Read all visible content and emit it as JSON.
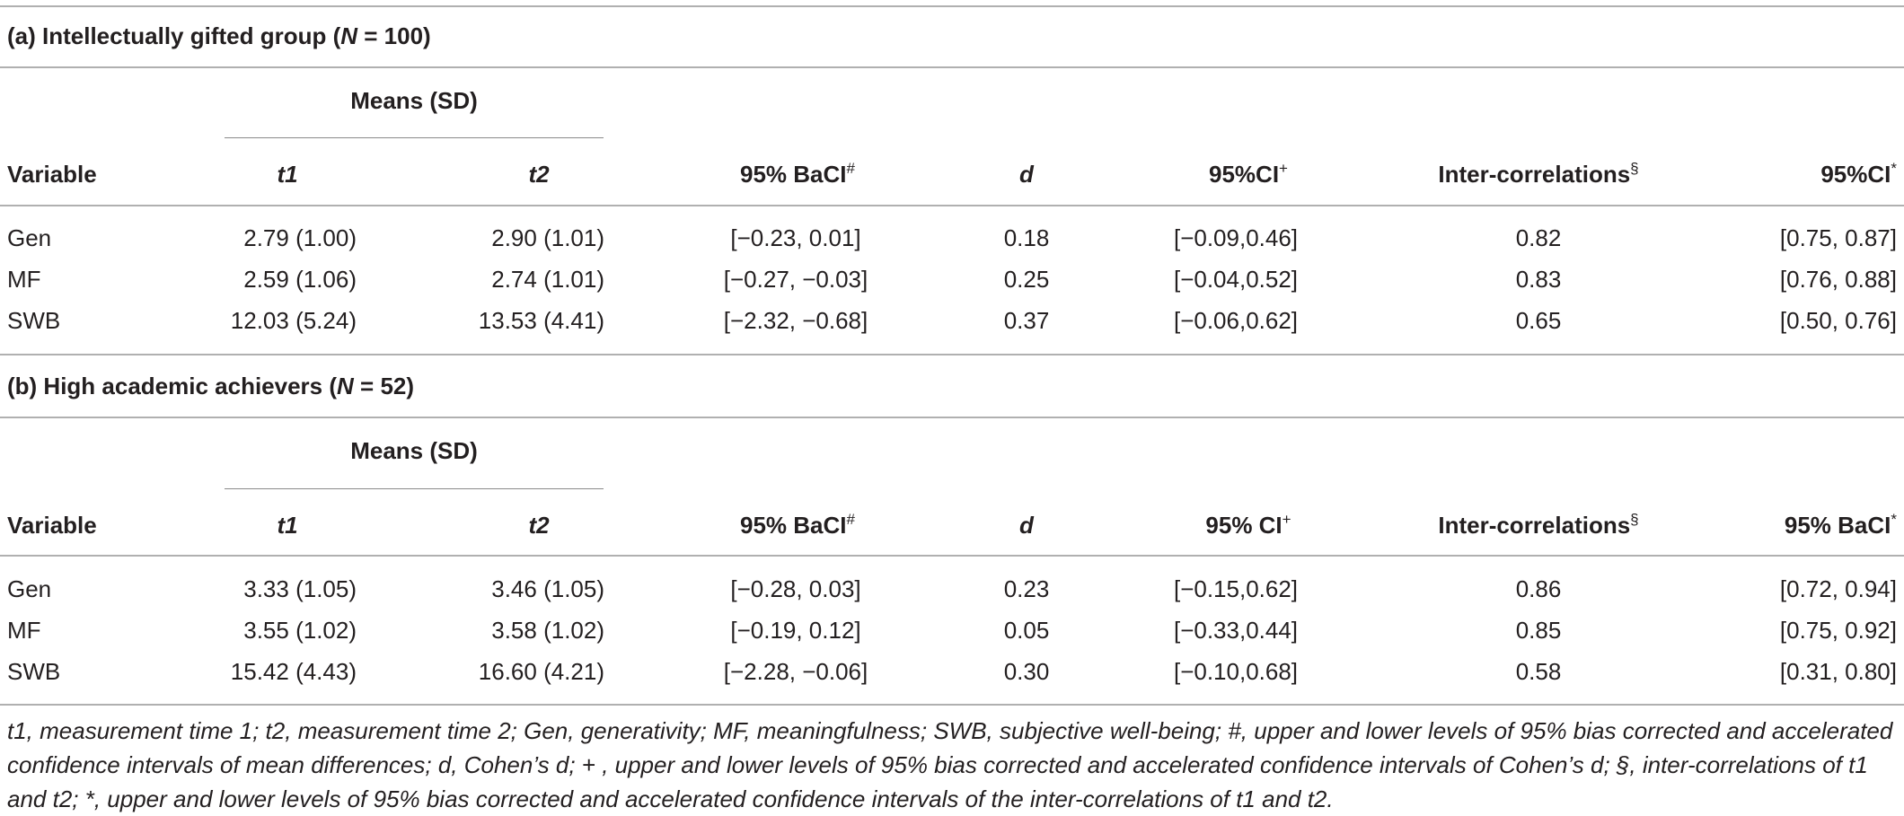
{
  "sections": [
    {
      "title_prefix": "(a) Intellectually gifted group (",
      "title_n": "N",
      "title_suffix": " = 100)",
      "means_header": "Means (SD)",
      "headers": {
        "variable": "Variable",
        "t1": "t1",
        "t2": "t2",
        "baci": "95% BaCI",
        "baci_mark": "#",
        "d": "d",
        "ci_d": "95%CI",
        "ci_d_mark": "+",
        "intercorr": "Inter-correlations",
        "intercorr_mark": "§",
        "ci_r": "95%CI",
        "ci_r_mark": "*"
      },
      "rows": [
        {
          "variable": "Gen",
          "t1": "2.79 (1.00)",
          "t2": "2.90 (1.01)",
          "baci": "[−0.23, 0.01]",
          "d": "0.18",
          "ci_d": "[−0.09,0.46]",
          "intercorr": "0.82",
          "ci_r": "[0.75, 0.87]"
        },
        {
          "variable": "MF",
          "t1": "2.59 (1.06)",
          "t2": "2.74 (1.01)",
          "baci": "[−0.27, −0.03]",
          "d": "0.25",
          "ci_d": "[−0.04,0.52]",
          "intercorr": "0.83",
          "ci_r": "[0.76, 0.88]"
        },
        {
          "variable": "SWB",
          "t1": "12.03 (5.24)",
          "t2": "13.53 (4.41)",
          "baci": "[−2.32, −0.68]",
          "d": "0.37",
          "ci_d": "[−0.06,0.62]",
          "intercorr": "0.65",
          "ci_r": "[0.50, 0.76]"
        }
      ]
    },
    {
      "title_prefix": "(b) High academic achievers (",
      "title_n": "N",
      "title_suffix": " = 52)",
      "means_header": "Means (SD)",
      "headers": {
        "variable": "Variable",
        "t1": "t1",
        "t2": "t2",
        "baci": "95% BaCI",
        "baci_mark": "#",
        "d": "d",
        "ci_d": "95% CI",
        "ci_d_mark": "+",
        "intercorr": "Inter-correlations",
        "intercorr_mark": "§",
        "ci_r": "95% BaCI",
        "ci_r_mark": "*"
      },
      "rows": [
        {
          "variable": "Gen",
          "t1": "3.33 (1.05)",
          "t2": "3.46 (1.05)",
          "baci": "[−0.28, 0.03]",
          "d": "0.23",
          "ci_d": "[−0.15,0.62]",
          "intercorr": "0.86",
          "ci_r": "[0.72, 0.94]"
        },
        {
          "variable": "MF",
          "t1": "3.55 (1.02)",
          "t2": "3.58 (1.02)",
          "baci": "[−0.19, 0.12]",
          "d": "0.05",
          "ci_d": "[−0.33,0.44]",
          "intercorr": "0.85",
          "ci_r": "[0.75, 0.92]"
        },
        {
          "variable": "SWB",
          "t1": "15.42 (4.43)",
          "t2": "16.60 (4.21)",
          "baci": "[−2.28, −0.06]",
          "d": "0.30",
          "ci_d": "[−0.10,0.68]",
          "intercorr": "0.58",
          "ci_r": "[0.31, 0.80]"
        }
      ]
    }
  ],
  "footnote": "t1, measurement time 1; t2, measurement time 2; Gen, generativity; MF, meaningfulness; SWB, subjective well-being; #, upper and lower levels of 95% bias corrected and accelerated confidence intervals of mean differences; d, Cohen’s d; + , upper and lower levels of 95% bias corrected and accelerated confidence intervals of Cohen’s d; §, inter-correlations of t1 and t2; *, upper and lower levels of 95% bias corrected and accelerated confidence intervals of the inter-correlations of t1 and t2."
}
